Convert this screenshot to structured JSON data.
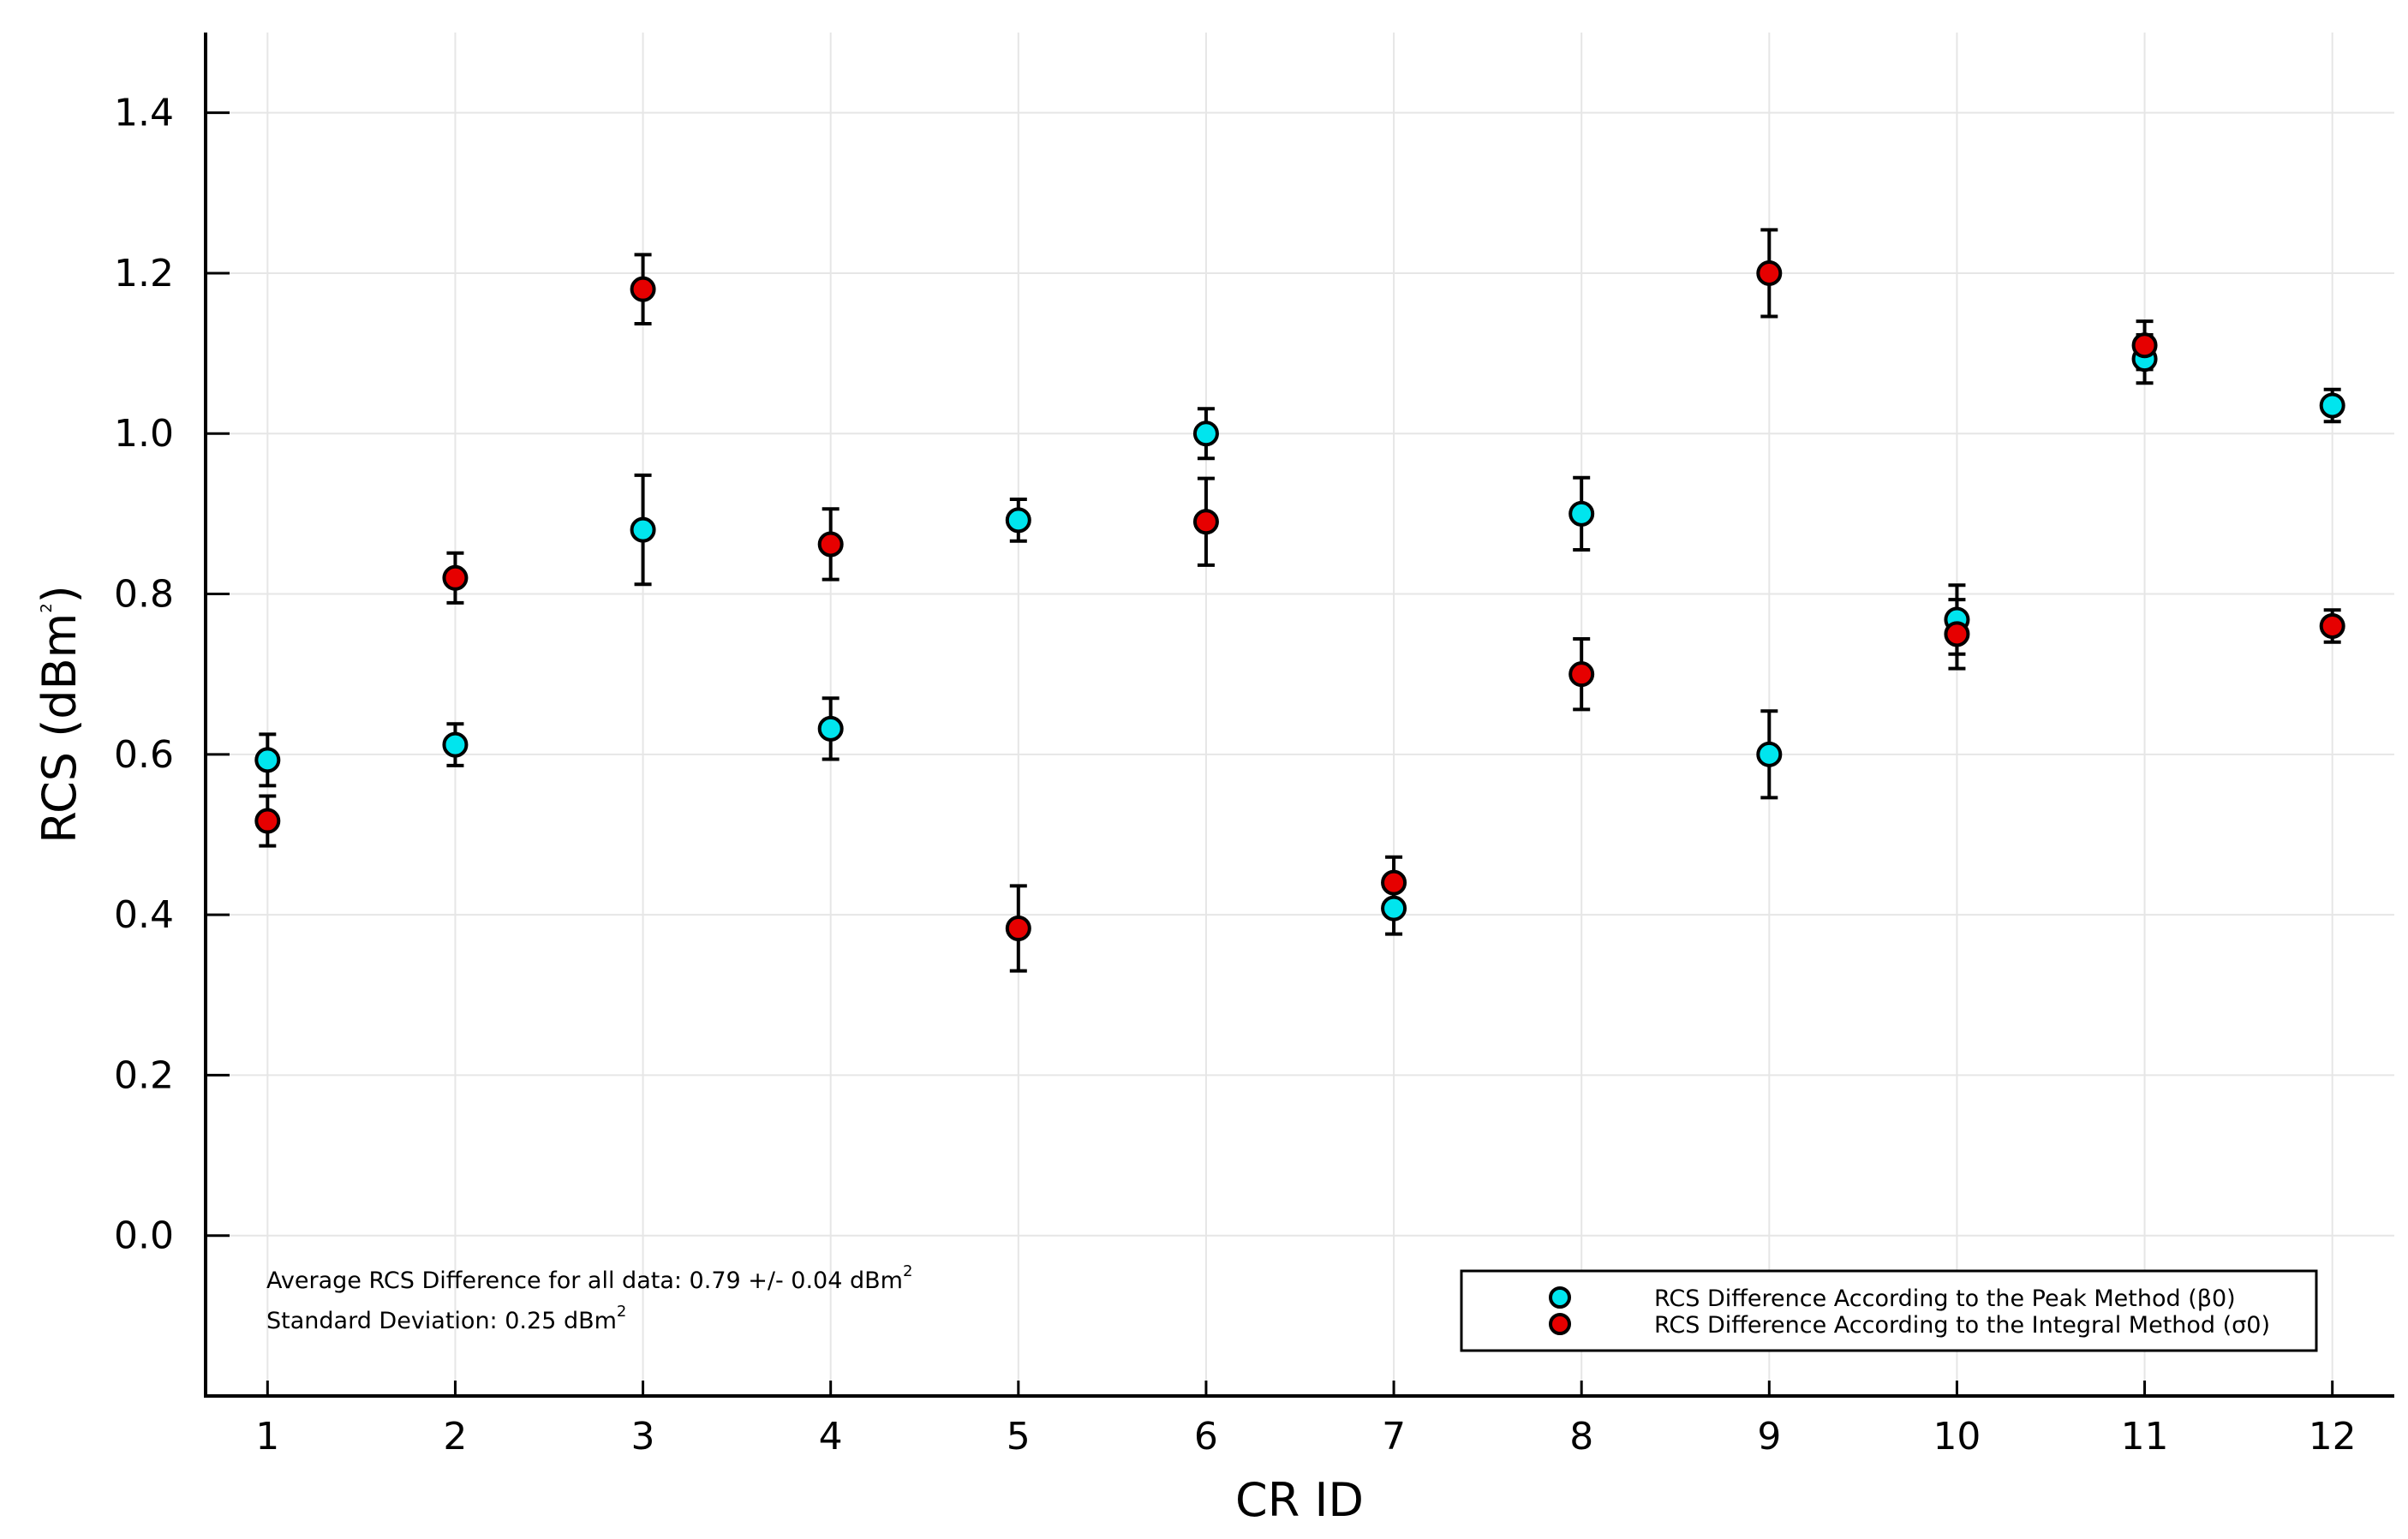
{
  "chart_data": {
    "type": "scatter",
    "title": "",
    "xlabel": "CR ID",
    "ylabel": "RCS (dBm",
    "ylabel_sup": "2",
    "ylabel_close": ")",
    "xlim": [
      0.67,
      12.33
    ],
    "ylim": [
      -0.2,
      1.5
    ],
    "x_ticks": [
      1,
      2,
      3,
      4,
      5,
      6,
      7,
      8,
      9,
      10,
      11,
      12
    ],
    "y_ticks": [
      "0.0",
      "0.2",
      "0.4",
      "0.6",
      "0.8",
      "1.0",
      "1.2",
      "1.4"
    ],
    "grid": true,
    "legend_position": "bottom-right",
    "series": [
      {
        "name": "RCS Difference According to the Peak Method (β0)",
        "color": "#00e5ee",
        "x": [
          1,
          2,
          3,
          4,
          5,
          6,
          7,
          8,
          9,
          10,
          11,
          12
        ],
        "values": [
          0.593,
          0.612,
          0.88,
          0.632,
          0.892,
          1.0,
          0.408,
          0.9,
          0.6,
          0.768,
          1.093,
          1.035
        ],
        "errors": [
          0.032,
          0.026,
          0.068,
          0.038,
          0.026,
          0.031,
          0.032,
          0.045,
          0.054,
          0.043,
          0.03,
          0.02
        ]
      },
      {
        "name": "RCS Difference According to the Integral Method (σ0)",
        "color": "#e60000",
        "x": [
          1,
          2,
          3,
          4,
          5,
          6,
          7,
          8,
          9,
          10,
          11,
          12
        ],
        "values": [
          0.517,
          0.82,
          1.18,
          0.862,
          0.383,
          0.89,
          0.44,
          0.7,
          1.2,
          0.75,
          1.11,
          0.76
        ],
        "errors": [
          0.031,
          0.031,
          0.043,
          0.044,
          0.053,
          0.054,
          0.032,
          0.044,
          0.054,
          0.043,
          0.03,
          0.02
        ]
      }
    ],
    "annotations": [
      {
        "text": "Average RCS Difference for all data: 0.79 +/- 0.04 dBm",
        "sup": "2"
      },
      {
        "text": "Standard Deviation: 0.25 dBm",
        "sup": "2"
      }
    ]
  }
}
